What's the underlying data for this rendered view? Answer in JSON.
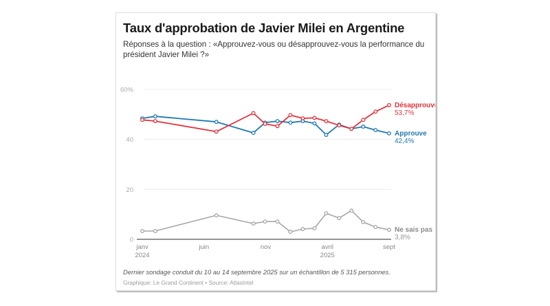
{
  "title": "Taux d'approbation de Javier Milei en Argentine",
  "subtitle": "Réponses à la question : «Approuvez-vous ou désapprouvez-vous la performance du président Javier Milei ?»",
  "footer": {
    "note": "Dernier sondage conduit du 10 au 14 septembre 2025 sur un échantillon de 5 315 personnes.",
    "source": "Graphique: Le Grand Continent • Source: AtlasIntel"
  },
  "chart_data": {
    "type": "line",
    "title": "Taux d'approbation de Javier Milei en Argentine",
    "xlabel": "",
    "ylabel": "",
    "ylim": [
      0,
      60
    ],
    "xlim_months": [
      0,
      20
    ],
    "grid": true,
    "legend": "inline-right",
    "y_ticks": [
      {
        "value": 0,
        "label": "0"
      },
      {
        "value": 20,
        "label": "20"
      },
      {
        "value": 40,
        "label": "40"
      },
      {
        "value": 60,
        "label": "60%"
      }
    ],
    "x_ticks": [
      {
        "month": 0,
        "label": "janv",
        "sublabel": "2024"
      },
      {
        "month": 5,
        "label": "juin",
        "sublabel": ""
      },
      {
        "month": 10,
        "label": "nov",
        "sublabel": ""
      },
      {
        "month": 15,
        "label": "avril",
        "sublabel": "2025"
      },
      {
        "month": 20,
        "label": "sept",
        "sublabel": ""
      }
    ],
    "x": [
      0,
      1.05,
      6.0,
      9.0,
      9.95,
      10.95,
      12.0,
      13.0,
      13.95,
      14.9,
      15.95,
      16.95,
      17.9,
      18.9,
      20.0
    ],
    "series": [
      {
        "name": "Désapprouve",
        "end_label": "53,7%",
        "color": "#e2323c",
        "values": [
          47.8,
          47.3,
          43.1,
          50.5,
          46.2,
          45.3,
          49.7,
          48.4,
          48.6,
          47.3,
          45.6,
          44.2,
          47.8,
          51.1,
          53.7
        ]
      },
      {
        "name": "Approuve",
        "end_label": "42,4%",
        "color": "#1f78b0",
        "values": [
          48.4,
          49.2,
          47.0,
          42.6,
          46.7,
          47.3,
          46.7,
          47.3,
          46.4,
          41.8,
          45.9,
          44.2,
          45.1,
          43.7,
          42.4
        ]
      },
      {
        "name": "Ne sais pas",
        "end_label": "3,8%",
        "color": "#a6a6a6",
        "values": [
          3.3,
          3.3,
          9.6,
          6.3,
          7.1,
          7.1,
          3.0,
          4.1,
          4.4,
          10.4,
          8.5,
          11.5,
          6.9,
          4.9,
          3.8
        ]
      }
    ]
  }
}
